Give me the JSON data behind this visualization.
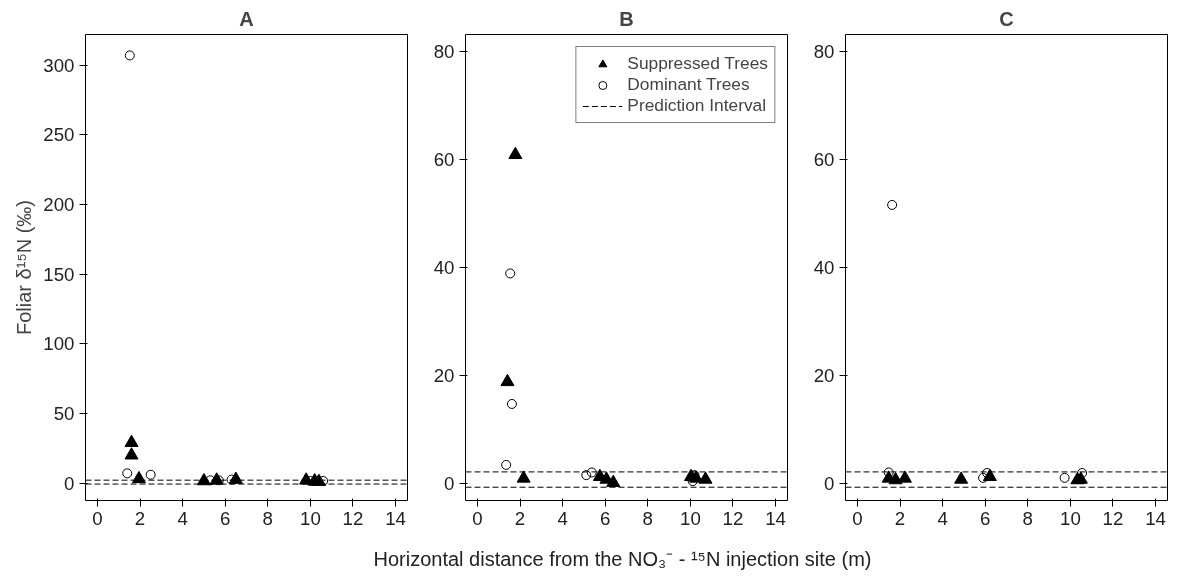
{
  "chart_data": [
    {
      "type": "scatter",
      "title": "A",
      "ylabel": "Foliar δ¹⁵N (‰)",
      "xlim": [
        -0.56,
        14.56
      ],
      "ylim": [
        -12.5,
        322
      ],
      "xticks": [
        0,
        2,
        4,
        6,
        8,
        10,
        12,
        14
      ],
      "yticks": [
        0,
        50,
        100,
        150,
        200,
        250,
        300
      ],
      "grid": false,
      "legend": false,
      "series": [
        {
          "color": "#000000",
          "marker": "triangle",
          "x": [
            1.6,
            1.6,
            1.95,
            5.0,
            5.6,
            6.5,
            9.8,
            10.2,
            10.4
          ],
          "values": [
            29,
            20,
            3,
            1.5,
            2,
            2.5,
            2,
            1.5,
            1
          ]
        },
        {
          "color": "#000000",
          "marker": "circle",
          "x": [
            1.4,
            1.52,
            2.5,
            5.3,
            5.7,
            6.3,
            10.0,
            10.6
          ],
          "values": [
            7,
            307,
            6,
            2,
            2,
            2.5,
            1.5,
            1.5
          ]
        }
      ],
      "ref_lines": [
        {
          "axis": "y",
          "value": 2.1,
          "line_style": "dashed",
          "color": "#000000"
        },
        {
          "axis": "y",
          "value": -0.7,
          "line_style": "dashed",
          "color": "#000000"
        }
      ]
    },
    {
      "type": "scatter",
      "title": "B",
      "xlabel": "Horizontal distance from the NO₃⁻ - ¹⁵N injection site (m)",
      "xlim": [
        -0.56,
        14.56
      ],
      "ylim": [
        -3.2,
        83.2
      ],
      "xticks": [
        0,
        2,
        4,
        6,
        8,
        10,
        12,
        14
      ],
      "yticks": [
        0,
        20,
        40,
        60,
        80
      ],
      "grid": false,
      "legend": "top right",
      "series": [
        {
          "name": "Suppressed Trees",
          "color": "#000000",
          "marker": "triangle",
          "x": [
            1.78,
            1.41,
            2.17,
            5.75,
            6.06,
            6.38,
            10.03,
            10.27,
            10.71
          ],
          "values": [
            60.9,
            18.8,
            0.9,
            1.2,
            0.7,
            0.1,
            1.2,
            0.9,
            0.7
          ]
        },
        {
          "name": "Dominant Trees",
          "color": "#000000",
          "marker": "circle",
          "x": [
            1.54,
            1.62,
            1.35,
            5.11,
            5.37,
            10.11,
            10.19
          ],
          "values": [
            38.9,
            14.7,
            3.4,
            1.5,
            2.0,
            0.4,
            1.5
          ]
        }
      ],
      "ref_lines": [
        {
          "axis": "y",
          "value": 2.1,
          "line_style": "dashed",
          "color": "#000000",
          "label": "Prediction Interval"
        },
        {
          "axis": "y",
          "value": -0.74,
          "line_style": "dashed",
          "color": "#000000"
        }
      ]
    },
    {
      "type": "scatter",
      "title": "C",
      "xlim": [
        -0.56,
        14.56
      ],
      "ylim": [
        -3.2,
        83.2
      ],
      "xticks": [
        0,
        2,
        4,
        6,
        8,
        10,
        12,
        14
      ],
      "yticks": [
        0,
        20,
        40,
        60,
        80
      ],
      "grid": false,
      "legend": false,
      "series": [
        {
          "color": "#000000",
          "marker": "triangle",
          "x": [
            1.47,
            1.79,
            2.23,
            4.87,
            6.22,
            10.33,
            10.49
          ],
          "values": [
            0.9,
            0.6,
            0.9,
            0.7,
            1.2,
            0.6,
            0.7
          ]
        },
        {
          "color": "#000000",
          "marker": "circle",
          "x": [
            1.63,
            1.47,
            5.9,
            6.09,
            9.73,
            10.55
          ],
          "values": [
            51.6,
            2.0,
            1.0,
            1.9,
            1.0,
            1.9
          ]
        }
      ],
      "ref_lines": [
        {
          "axis": "y",
          "value": 2.1,
          "line_style": "dashed",
          "color": "#000000"
        },
        {
          "axis": "y",
          "value": -0.74,
          "line_style": "dashed",
          "color": "#000000"
        }
      ]
    }
  ]
}
